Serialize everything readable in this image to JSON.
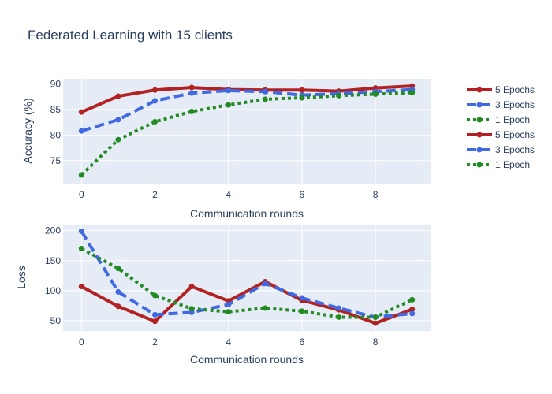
{
  "chart_data": [
    {
      "type": "line",
      "title": "Federated Learning with 15 clients",
      "xlabel": "Communication rounds",
      "ylabel": "Accuracy (%)",
      "x": [
        0,
        1,
        2,
        3,
        4,
        5,
        6,
        7,
        8,
        9
      ],
      "xticks": [
        0,
        2,
        4,
        6,
        8
      ],
      "yticks": [
        75,
        80,
        85,
        90
      ],
      "xlim": [
        -0.5,
        9.5
      ],
      "ylim": [
        70.5,
        91
      ],
      "grid": true,
      "series": [
        {
          "name": "5 Epochs",
          "color": "#b22222",
          "dash": "solid",
          "values": [
            84.5,
            87.6,
            88.8,
            89.3,
            88.9,
            88.8,
            88.8,
            88.6,
            89.2,
            89.6
          ]
        },
        {
          "name": "3 Epochs",
          "color": "#4169e1",
          "dash": "dash",
          "values": [
            80.8,
            83.0,
            86.7,
            88.2,
            88.7,
            88.5,
            87.8,
            88.1,
            88.5,
            88.9
          ]
        },
        {
          "name": "1 Epoch",
          "color": "#228b22",
          "dash": "dot",
          "values": [
            72.2,
            79.1,
            82.6,
            84.6,
            85.9,
            87.0,
            87.3,
            87.7,
            88.0,
            88.3
          ]
        }
      ]
    },
    {
      "type": "line",
      "xlabel": "Communication rounds",
      "ylabel": "Loss",
      "x": [
        0,
        1,
        2,
        3,
        4,
        5,
        6,
        7,
        8,
        9
      ],
      "xticks": [
        0,
        2,
        4,
        6,
        8
      ],
      "yticks": [
        50,
        100,
        150,
        200
      ],
      "xlim": [
        -0.5,
        9.5
      ],
      "ylim": [
        33,
        210
      ],
      "grid": true,
      "series": [
        {
          "name": "5 Epochs",
          "color": "#b22222",
          "dash": "solid",
          "values": [
            107,
            74,
            49,
            107,
            83,
            115,
            84,
            68,
            46,
            69
          ]
        },
        {
          "name": "3 Epochs",
          "color": "#4169e1",
          "dash": "dash",
          "values": [
            199,
            98,
            60,
            64,
            77,
            112,
            88,
            71,
            56,
            62
          ]
        },
        {
          "name": "1 Epoch",
          "color": "#228b22",
          "dash": "dot",
          "values": [
            170,
            137,
            92,
            70,
            65,
            71,
            66,
            56,
            56,
            85
          ]
        }
      ]
    }
  ],
  "legend": {
    "placement": "right",
    "items": [
      {
        "label": "5 Epochs",
        "color": "#b22222",
        "dash": "solid"
      },
      {
        "label": "3 Epochs",
        "color": "#4169e1",
        "dash": "dash"
      },
      {
        "label": "1 Epoch",
        "color": "#228b22",
        "dash": "dot"
      },
      {
        "label": "5 Epochs",
        "color": "#b22222",
        "dash": "solid"
      },
      {
        "label": "3 Epochs",
        "color": "#4169e1",
        "dash": "dash"
      },
      {
        "label": "1 Epoch",
        "color": "#228b22",
        "dash": "dot"
      }
    ]
  },
  "colors": {
    "plot_bg": "#e5ecf6",
    "grid": "#ffffff",
    "text": "#2a3f5f"
  }
}
